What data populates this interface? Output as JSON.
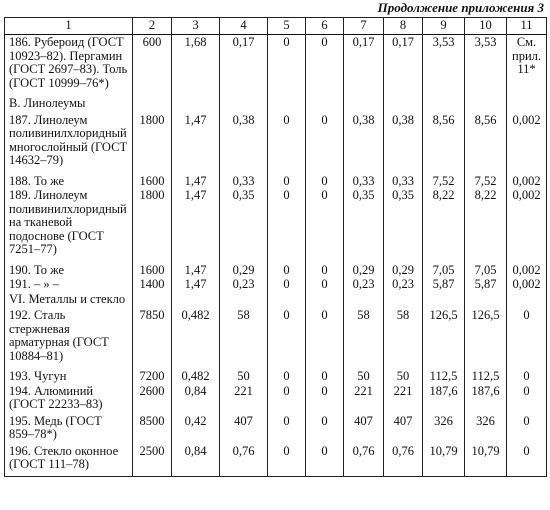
{
  "caption": "Продолжение приложения 3",
  "headers": [
    "1",
    "2",
    "3",
    "4",
    "5",
    "6",
    "7",
    "8",
    "9",
    "10",
    "11"
  ],
  "rows": [
    {
      "cells": [
        "186. Рубероид (ГОСТ 10923–82). Пергамин (ГОСТ 2697–83). Толь (ГОСТ 10999–76*)",
        "600",
        "1,68",
        "0,17",
        "0",
        "0",
        "0,17",
        "0,17",
        "3,53",
        "3,53",
        "См. прил. 11*"
      ]
    },
    {
      "cells": [
        "В. Линолеумы",
        "",
        "",
        "",
        "",
        "",
        "",
        "",
        "",
        "",
        ""
      ]
    },
    {
      "cells": [
        "187. Линолеум поливинилхлоридный многослойный (ГОСТ 14632–79)",
        "1800",
        "1,47",
        "0,38",
        "0",
        "0",
        "0,38",
        "0,38",
        "8,56",
        "8,56",
        "0,002"
      ]
    },
    {
      "cells": [
        "188. То же",
        "1600",
        "1,47",
        "0,33",
        "0",
        "0",
        "0,33",
        "0,33",
        "7,52",
        "7,52",
        "0,002"
      ]
    },
    {
      "cells": [
        "189. Линолеум поливинилхлоридный на тканевой подоснове (ГОСТ 7251–77)",
        "1800",
        "1,47",
        "0,35",
        "0",
        "0",
        "0,35",
        "0,35",
        "8,22",
        "8,22",
        "0,002"
      ]
    },
    {
      "cells": [
        "190. То же",
        "1600",
        "1,47",
        "0,29",
        "0",
        "0",
        "0,29",
        "0,29",
        "7,05",
        "7,05",
        "0,002"
      ]
    },
    {
      "cells": [
        "191. – » –",
        "1400",
        "1,47",
        "0,23",
        "0",
        "0",
        "0,23",
        "0,23",
        "5,87",
        "5,87",
        "0,002"
      ]
    },
    {
      "cells": [
        "VI. Металлы и стекло",
        "",
        "",
        "",
        "",
        "",
        "",
        "",
        "",
        "",
        ""
      ]
    },
    {
      "cells": [
        "192. Сталь стержневая арматурная (ГОСТ 10884–81)",
        "7850",
        "0,482",
        "58",
        "0",
        "0",
        "58",
        "58",
        "126,5",
        "126,5",
        "0"
      ]
    },
    {
      "cells": [
        "193. Чугун",
        "7200",
        "0,482",
        "50",
        "0",
        "0",
        "50",
        "50",
        "112,5",
        "112,5",
        "0"
      ]
    },
    {
      "cells": [
        "194. Алюминий (ГОСТ 22233–83)",
        "2600",
        "0,84",
        "221",
        "0",
        "0",
        "221",
        "221",
        "187,6",
        "187,6",
        "0"
      ]
    },
    {
      "cells": [
        "195. Медь (ГОСТ 859–78*)",
        "8500",
        "0,42",
        "407",
        "0",
        "0",
        "407",
        "407",
        "326",
        "326",
        "0"
      ]
    },
    {
      "cells": [
        "196. Стекло оконное (ГОСТ 111–78)",
        "2500",
        "0,84",
        "0,76",
        "0",
        "0",
        "0,76",
        "0,76",
        "10,79",
        "10,79",
        "0"
      ]
    }
  ]
}
